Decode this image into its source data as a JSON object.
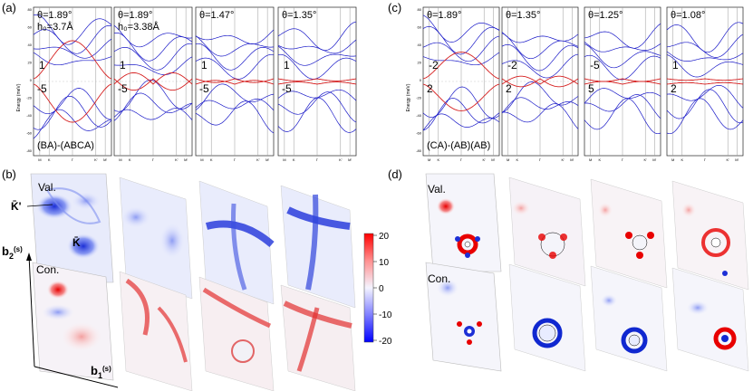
{
  "panel_labels": {
    "a": "(a)",
    "b": "(b)",
    "c": "(c)",
    "d": "(d)"
  },
  "band_panels_a": [
    {
      "angle": "θ=1.89°",
      "h0": "h₀=3.7Å",
      "label_top": "1",
      "label_bottom": "-5",
      "stacking": "(BA)-(ABCA)"
    },
    {
      "angle": "θ=1.89°",
      "h0": "h₀=3.38Å",
      "label_top": "1",
      "label_bottom": "-5"
    },
    {
      "angle": "θ=1.47°",
      "label_top": "1",
      "label_bottom": "-5"
    },
    {
      "angle": "θ=1.35°",
      "label_top": "1",
      "label_bottom": "-5"
    }
  ],
  "band_panels_c": [
    {
      "angle": "θ=1.89°",
      "label_top": "-2",
      "label_bottom": "2",
      "stacking": "(CA)-(AB)(AB)"
    },
    {
      "angle": "θ=1.35°",
      "label_top": "-2",
      "label_bottom": "2"
    },
    {
      "angle": "θ=1.25°",
      "label_top": "-5",
      "label_bottom": "5"
    },
    {
      "angle": "θ=1.08°",
      "label_top": "1",
      "label_bottom": "2"
    }
  ],
  "band_axis": {
    "ylabel": "Energy (meV)",
    "yticks": [
      "80",
      "60",
      "40",
      "20",
      "0",
      "-20",
      "-40",
      "-60",
      "-80"
    ],
    "xticks": [
      "M",
      "K",
      "Γ",
      "K'",
      "M'"
    ]
  },
  "map_labels": {
    "val": "Val.",
    "con": "Con.",
    "kprime": "K̄'",
    "kbar": "K̄",
    "b1": "b",
    "b1_sub": "1",
    "b1_sup": "(s)",
    "b2": "b",
    "b2_sub": "2",
    "b2_sup": "(s)"
  },
  "colorbar": {
    "ticks": [
      "20",
      "10",
      "0",
      "-10",
      "-20"
    ]
  },
  "colors": {
    "band_flat": "#d62020",
    "band_other": "#1a1ac8",
    "positive": "#e60000",
    "negative": "#0000cc"
  }
}
